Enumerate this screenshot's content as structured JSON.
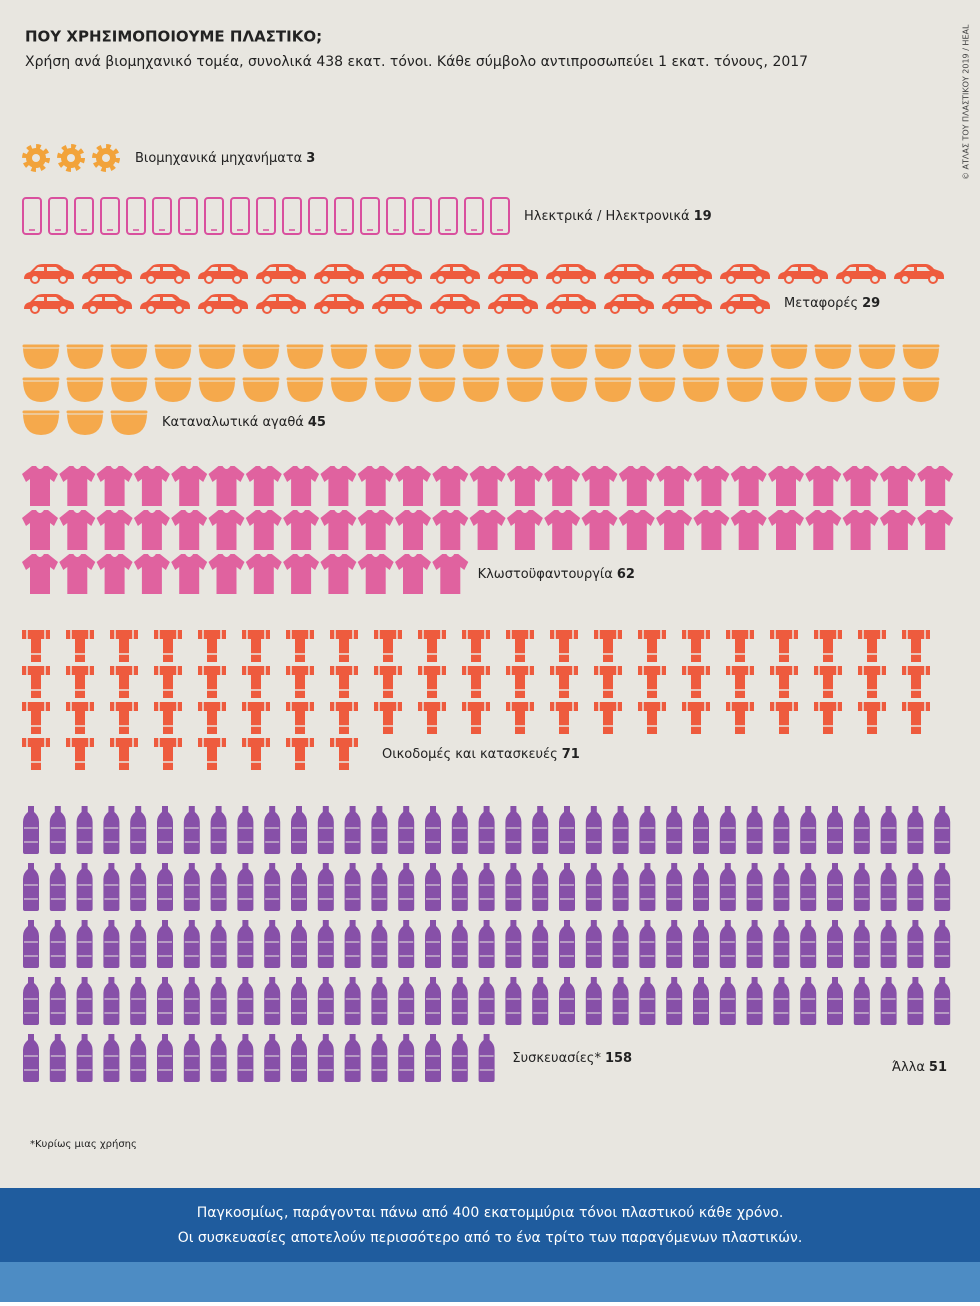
{
  "chart_data": {
    "type": "pictogram",
    "title": "ΠΟΥ ΧΡΗΣΙΜΟΠΟΙΟΥΜΕ ΠΛΑΣΤΙΚΟ;",
    "subtitle": "Χρήση ανά βιομηχανικό τομέα, συνολικά 438 εκατ. τόνοι. Κάθε σύμβολο αντιπροσωπεύει 1 εκατ. τόνους, 2017",
    "categories": [
      "Βιομηχανικά μηχανήματα",
      "Ηλεκτρικά / Ηλεκτρονικά",
      "Μεταφορές",
      "Καταναλωτικά αγαθά",
      "Κλωστοϋφαντουργία",
      "Οικοδομές και κατασκευές",
      "Συσκευασίες*"
    ],
    "values": [
      3,
      19,
      29,
      45,
      62,
      71,
      158
    ],
    "colors": [
      "#f2a33a",
      "#d9509e",
      "#ee5b3e",
      "#f5a94c",
      "#e0629f",
      "#ee5b3e",
      "#8750a8"
    ],
    "other": {
      "label": "Άλλα",
      "value": 51
    },
    "footnote": "*Κυρίως μιας χρήσης",
    "credit": "© ΑΤΛΑΣ ΤΟΥ ΠΛΑΣΤΙΚΟΥ 2019 / HEAL",
    "banner": [
      "Παγκοσμίως, παράγονται πάνω από 400 εκατομμύρια τόνοι πλαστικού κάθε χρόνο.",
      "Οι συσκευασίες αποτελούν περισσότερο από το ένα τρίτο των παραγόμενων πλαστικών."
    ]
  }
}
